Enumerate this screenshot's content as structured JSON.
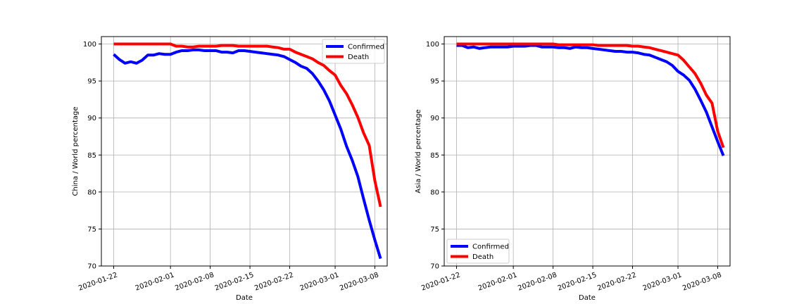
{
  "chart_data": [
    {
      "type": "line",
      "xlabel": "Date",
      "ylabel": "China / World percentage",
      "ylim": [
        70,
        101
      ],
      "yticks": [
        70,
        75,
        80,
        85,
        90,
        95,
        100
      ],
      "xticks": [
        "2020-01-22",
        "2020-02-01",
        "2020-02-08",
        "2020-02-15",
        "2020-02-22",
        "2020-03-01",
        "2020-03-08"
      ],
      "x_start": "2020-01-22",
      "x_end": "2020-03-08",
      "grid": true,
      "legend_position": "top-right",
      "series": [
        {
          "name": "Confirmed",
          "color": "#0000ff",
          "values": [
            98.6,
            97.9,
            97.4,
            97.6,
            97.4,
            97.8,
            98.5,
            98.5,
            98.7,
            98.6,
            98.6,
            98.9,
            99.1,
            99.1,
            99.2,
            99.2,
            99.1,
            99.1,
            99.1,
            98.9,
            98.9,
            98.8,
            99.1,
            99.1,
            99.0,
            98.9,
            98.8,
            98.7,
            98.6,
            98.5,
            98.3,
            97.9,
            97.5,
            97.0,
            96.7,
            96.0,
            95.0,
            93.8,
            92.3,
            90.4,
            88.5,
            86.2,
            84.3,
            82.1,
            79.1,
            76.2,
            73.5,
            71.0
          ]
        },
        {
          "name": "Death",
          "color": "#ff0000",
          "values": [
            100.0,
            100.0,
            100.0,
            100.0,
            100.0,
            100.0,
            100.0,
            100.0,
            100.0,
            100.0,
            100.0,
            99.7,
            99.7,
            99.6,
            99.6,
            99.7,
            99.7,
            99.7,
            99.7,
            99.8,
            99.8,
            99.8,
            99.7,
            99.7,
            99.7,
            99.7,
            99.7,
            99.7,
            99.6,
            99.5,
            99.3,
            99.3,
            98.9,
            98.6,
            98.3,
            98.0,
            97.5,
            97.1,
            96.4,
            95.8,
            94.4,
            93.3,
            91.8,
            90.1,
            88.0,
            86.3,
            81.5,
            78.0
          ]
        }
      ]
    },
    {
      "type": "line",
      "xlabel": "Date",
      "ylabel": "Asia / World percentage",
      "ylim": [
        70,
        101
      ],
      "yticks": [
        70,
        75,
        80,
        85,
        90,
        95,
        100
      ],
      "xticks": [
        "2020-01-22",
        "2020-02-01",
        "2020-02-08",
        "2020-02-15",
        "2020-02-22",
        "2020-03-01",
        "2020-03-08"
      ],
      "x_start": "2020-01-22",
      "x_end": "2020-03-08",
      "grid": true,
      "legend_position": "bottom-left",
      "series": [
        {
          "name": "Confirmed",
          "color": "#0000ff",
          "values": [
            99.8,
            99.8,
            99.5,
            99.6,
            99.4,
            99.5,
            99.6,
            99.6,
            99.6,
            99.6,
            99.7,
            99.7,
            99.7,
            99.8,
            99.8,
            99.6,
            99.6,
            99.6,
            99.5,
            99.5,
            99.4,
            99.6,
            99.5,
            99.5,
            99.4,
            99.3,
            99.2,
            99.1,
            99.0,
            99.0,
            98.9,
            98.9,
            98.8,
            98.6,
            98.5,
            98.2,
            97.9,
            97.6,
            97.1,
            96.3,
            95.8,
            95.1,
            93.9,
            92.4,
            90.8,
            88.8,
            86.8,
            84.9
          ]
        },
        {
          "name": "Death",
          "color": "#ff0000",
          "values": [
            100.0,
            100.0,
            100.0,
            100.0,
            100.0,
            100.0,
            100.0,
            100.0,
            100.0,
            100.0,
            100.0,
            100.0,
            100.0,
            100.0,
            100.0,
            100.0,
            100.0,
            100.0,
            99.9,
            99.9,
            99.9,
            99.9,
            99.9,
            99.9,
            99.9,
            99.8,
            99.8,
            99.8,
            99.8,
            99.8,
            99.8,
            99.7,
            99.7,
            99.6,
            99.5,
            99.3,
            99.1,
            98.9,
            98.7,
            98.5,
            97.8,
            96.9,
            96.0,
            94.7,
            93.1,
            92.0,
            88.2,
            86.0
          ]
        }
      ]
    }
  ]
}
